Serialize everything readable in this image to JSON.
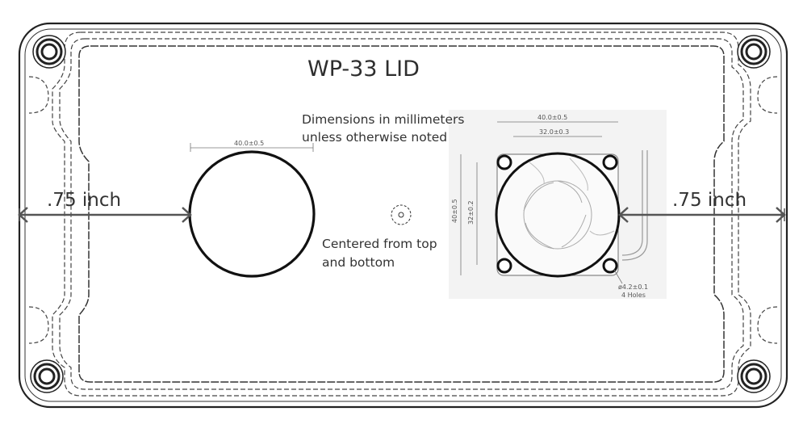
{
  "title": "WP-33 LID",
  "notes": {
    "units_line1": "Dimensions in millimeters",
    "units_line2": "unless otherwise noted",
    "centered_line1": "Centered from top",
    "centered_line2": " and bottom"
  },
  "dimensions": {
    "left_offset": ".75 inch",
    "right_offset": ".75 inch",
    "hole_diameter": "40.0±0.5"
  },
  "fan_drawing": {
    "outer_width": "40.0±0.5",
    "hole_spacing": "32.0±0.3",
    "outer_height": "40±0.5",
    "hole_spacing_v": "32±0.2",
    "mount_holes": "ø4.2±0.1",
    "mount_holes_count": "4 Holes"
  }
}
